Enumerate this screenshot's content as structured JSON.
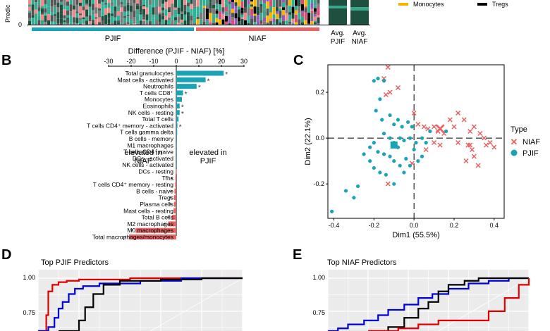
{
  "top_strip": {
    "y_axis_label": "Predic",
    "y_tick": "0",
    "groups": [
      "PJIF",
      "NIAF"
    ],
    "avg_labels": [
      [
        "Avg.",
        "PJIF"
      ],
      [
        "Avg.",
        "NIAF"
      ]
    ],
    "legend": [
      {
        "label": "Monocytes",
        "color": "#f4b400"
      },
      {
        "label": "Tregs",
        "color": "#000000"
      }
    ]
  },
  "panel_b": {
    "letter": "B",
    "title": "Difference (PJIF - NIAF) [%]",
    "annotation_left": [
      "elevated in",
      "NIAF"
    ],
    "annotation_right": [
      "elevated in",
      "PJIF"
    ],
    "chart_data": {
      "type": "bar",
      "orientation": "horizontal",
      "xlabel": "Difference (PJIF - NIAF) [%]",
      "xlim": [
        -30,
        30
      ],
      "xticks": [
        "-30",
        "-20",
        "-10",
        "0",
        "10",
        "20",
        "30"
      ],
      "categories": [
        "Total granulocytes",
        "Mast cells - activated",
        "Neutrophils",
        "T cells CD8⁺",
        "Monocytes",
        "Eosinophils",
        "NK cells - resting",
        "Total T cells",
        "T cells CD4⁺ memory - activated",
        "T cells gamma delta",
        "B cells - memory",
        "M1 macrophages",
        "T cells CD4⁺ naive",
        "DCs - activated",
        "NK cells - activated",
        "DCs - resting",
        "Tfhs",
        "T cells CD4⁺ memory - resting",
        "B cells - naive",
        "Tregs",
        "Plasma cells",
        "Mast cells - resting",
        "Total B cells",
        "M2 macrophages",
        "M0 macrophages",
        "Total macrophages/monocytes"
      ],
      "values": [
        21,
        13,
        9,
        3,
        2.5,
        1.5,
        1.5,
        1,
        0.5,
        0.4,
        0.3,
        0.2,
        0.15,
        0.1,
        0.05,
        -0.05,
        -0.4,
        -0.5,
        -0.8,
        -1,
        -1,
        -1.2,
        -2,
        -3.5,
        -18,
        -21
      ],
      "significant": [
        true,
        true,
        true,
        true,
        false,
        true,
        true,
        false,
        true,
        false,
        false,
        false,
        false,
        false,
        false,
        false,
        true,
        false,
        true,
        true,
        true,
        false,
        true,
        true,
        true,
        true
      ],
      "sig_marker": "*",
      "colors": {
        "positive": "#1aa3b5",
        "negative": "#e86363"
      }
    }
  },
  "panel_c": {
    "letter": "C",
    "legend_title": "Type",
    "legend": [
      {
        "label": "NIAF",
        "symbol": "cross",
        "color": "#e86363"
      },
      {
        "label": "PJIF",
        "symbol": "circle",
        "color": "#1aa3b5"
      }
    ],
    "chart_data": {
      "type": "scatter",
      "xlabel": "Dim1 (55.5%)",
      "ylabel": "Dim2 (22.1%)",
      "xlim": [
        -0.43,
        0.45
      ],
      "ylim": [
        -0.35,
        0.32
      ],
      "xticks": [
        "-0.4",
        "-0.2",
        "0.0",
        "0.2",
        "0.4"
      ],
      "yticks": [
        "0.2",
        "0.0",
        "-0.2"
      ],
      "series": [
        {
          "name": "NIAF",
          "centroid": [
            0.13,
            0.04
          ],
          "points": [
            [
              -0.13,
              0.31
            ],
            [
              -0.15,
              0.26
            ],
            [
              -0.08,
              0.22
            ],
            [
              -0.12,
              0.2
            ],
            [
              -0.14,
              0.19
            ],
            [
              0.0,
              0.11
            ],
            [
              0.02,
              0.06
            ],
            [
              0.05,
              0.05
            ],
            [
              0.07,
              0.04
            ],
            [
              0.1,
              0.05
            ],
            [
              0.12,
              0.03
            ],
            [
              0.15,
              0.02
            ],
            [
              0.18,
              0.08
            ],
            [
              0.22,
              0.11
            ],
            [
              0.25,
              0.08
            ],
            [
              0.2,
              0.05
            ],
            [
              0.28,
              0.03
            ],
            [
              0.3,
              0.05
            ],
            [
              0.33,
              0.02
            ],
            [
              0.35,
              0.0
            ],
            [
              0.36,
              -0.03
            ],
            [
              0.38,
              -0.02
            ],
            [
              0.4,
              -0.04
            ],
            [
              0.22,
              -0.02
            ],
            [
              0.27,
              -0.03
            ],
            [
              0.29,
              -0.05
            ],
            [
              0.3,
              -0.08
            ],
            [
              0.26,
              -0.1
            ],
            [
              0.32,
              -0.12
            ],
            [
              0.1,
              -0.02
            ],
            [
              0.06,
              -0.05
            ],
            [
              -0.01,
              -0.11
            ],
            [
              -0.13,
              -0.2
            ],
            [
              0.13,
              -0.03
            ],
            [
              0.28,
              -0.03
            ]
          ]
        },
        {
          "name": "PJIF",
          "centroid": [
            -0.1,
            -0.03
          ],
          "points": [
            [
              -0.18,
              0.26
            ],
            [
              -0.2,
              0.25
            ],
            [
              -0.15,
              0.25
            ],
            [
              -0.17,
              0.17
            ],
            [
              -0.19,
              0.12
            ],
            [
              -0.12,
              0.1
            ],
            [
              -0.08,
              0.08
            ],
            [
              -0.1,
              0.06
            ],
            [
              -0.06,
              0.05
            ],
            [
              -0.03,
              0.07
            ],
            [
              -0.01,
              0.05
            ],
            [
              -0.15,
              0.02
            ],
            [
              -0.12,
              0.0
            ],
            [
              -0.1,
              -0.02
            ],
            [
              -0.08,
              -0.04
            ],
            [
              -0.05,
              -0.01
            ],
            [
              -0.02,
              0.0
            ],
            [
              0.01,
              -0.02
            ],
            [
              0.04,
              0.0
            ],
            [
              0.06,
              -0.02
            ],
            [
              -0.2,
              -0.02
            ],
            [
              -0.22,
              -0.04
            ],
            [
              -0.18,
              -0.06
            ],
            [
              -0.15,
              -0.07
            ],
            [
              -0.12,
              -0.08
            ],
            [
              -0.1,
              -0.1
            ],
            [
              -0.07,
              -0.12
            ],
            [
              -0.04,
              -0.09
            ],
            [
              -0.02,
              -0.12
            ],
            [
              0.02,
              -0.1
            ],
            [
              -0.22,
              -0.1
            ],
            [
              -0.2,
              -0.13
            ],
            [
              -0.17,
              -0.15
            ],
            [
              -0.14,
              -0.16
            ],
            [
              -0.1,
              -0.2
            ],
            [
              -0.25,
              -0.07
            ],
            [
              -0.28,
              -0.21
            ],
            [
              -0.3,
              -0.26
            ],
            [
              -0.34,
              -0.23
            ],
            [
              -0.41,
              -0.32
            ],
            [
              -0.05,
              -0.15
            ],
            [
              0.0,
              -0.05
            ],
            [
              0.08,
              0.03
            ],
            [
              0.16,
              0.03
            ],
            [
              0.04,
              -0.08
            ],
            [
              -0.07,
              0.0
            ],
            [
              -0.16,
              0.08
            ]
          ]
        }
      ],
      "colors": {
        "NIAF": "#e86363",
        "PJIF": "#1aa3b5"
      }
    }
  },
  "panel_d": {
    "letter": "D",
    "title": "Top PJIF Predictors",
    "chart_data": {
      "type": "line",
      "yticks": [
        "1.00",
        "0.75"
      ],
      "ylim": [
        0.6,
        1.0
      ],
      "xlim": [
        0,
        1
      ],
      "series": [
        {
          "color": "#e00000",
          "points": [
            [
              0,
              0.58
            ],
            [
              0.03,
              0.6
            ],
            [
              0.04,
              0.72
            ],
            [
              0.05,
              0.9
            ],
            [
              0.07,
              0.95
            ],
            [
              0.1,
              0.97
            ],
            [
              0.14,
              0.98
            ],
            [
              0.2,
              0.99
            ],
            [
              0.45,
              1.0
            ],
            [
              1,
              1.0
            ]
          ]
        },
        {
          "color": "#0000d8",
          "points": [
            [
              0,
              0.6
            ],
            [
              0.05,
              0.63
            ],
            [
              0.08,
              0.7
            ],
            [
              0.1,
              0.77
            ],
            [
              0.12,
              0.82
            ],
            [
              0.15,
              0.88
            ],
            [
              0.18,
              0.92
            ],
            [
              0.22,
              0.94
            ],
            [
              0.3,
              0.96
            ],
            [
              0.5,
              0.98
            ],
            [
              0.7,
              1.0
            ],
            [
              1,
              1.0
            ]
          ]
        },
        {
          "color": "#000000",
          "points": [
            [
              0.1,
              0.58
            ],
            [
              0.17,
              0.6
            ],
            [
              0.2,
              0.68
            ],
            [
              0.23,
              0.78
            ],
            [
              0.27,
              0.88
            ],
            [
              0.32,
              0.95
            ],
            [
              0.4,
              0.98
            ],
            [
              0.6,
              0.99
            ],
            [
              0.8,
              1.0
            ],
            [
              1,
              1.0
            ]
          ]
        }
      ]
    }
  },
  "panel_e": {
    "letter": "E",
    "title": "Top NIAF Predictors",
    "chart_data": {
      "type": "line",
      "yticks": [
        "1.00",
        "0.75"
      ],
      "ylim": [
        0.6,
        1.0
      ],
      "xlim": [
        0,
        1
      ],
      "series": [
        {
          "color": "#0000d8",
          "points": [
            [
              0,
              0.6
            ],
            [
              0.05,
              0.62
            ],
            [
              0.1,
              0.65
            ],
            [
              0.18,
              0.68
            ],
            [
              0.25,
              0.72
            ],
            [
              0.3,
              0.76
            ],
            [
              0.38,
              0.8
            ],
            [
              0.45,
              0.85
            ],
            [
              0.52,
              0.88
            ],
            [
              0.6,
              0.92
            ],
            [
              0.7,
              0.96
            ],
            [
              0.8,
              0.98
            ],
            [
              0.9,
              1.0
            ],
            [
              1,
              1.0
            ]
          ]
        },
        {
          "color": "#000000",
          "points": [
            [
              0.2,
              0.6
            ],
            [
              0.3,
              0.63
            ],
            [
              0.38,
              0.7
            ],
            [
              0.45,
              0.77
            ],
            [
              0.5,
              0.82
            ],
            [
              0.55,
              0.9
            ],
            [
              0.6,
              0.95
            ],
            [
              0.68,
              0.98
            ],
            [
              0.75,
              1.0
            ],
            [
              1,
              1.0
            ]
          ]
        },
        {
          "color": "#e00000",
          "points": [
            [
              0.2,
              0.6
            ],
            [
              0.35,
              0.62
            ],
            [
              0.45,
              0.65
            ],
            [
              0.55,
              0.68
            ],
            [
              0.7,
              0.68
            ],
            [
              0.8,
              0.75
            ],
            [
              0.88,
              0.85
            ],
            [
              0.95,
              0.95
            ],
            [
              1,
              1.0
            ]
          ]
        }
      ]
    }
  }
}
